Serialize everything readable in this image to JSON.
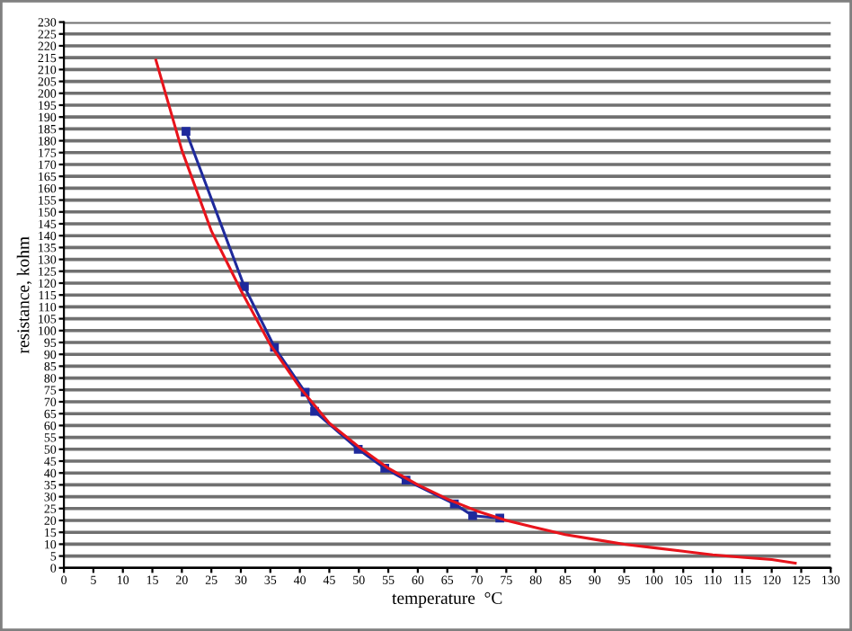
{
  "chart_data": {
    "type": "line",
    "xlabel": "temperature  °C",
    "ylabel": "resistance, kohm",
    "series": [
      {
        "color": "#1f2a9c",
        "marker": "square",
        "x": [
          20.7,
          30.6,
          35.7,
          40.9,
          42.5,
          49.9,
          54.4,
          58,
          66.2,
          69.3,
          73.9
        ],
        "values": [
          184,
          118.5,
          93,
          74,
          66,
          50,
          42,
          37,
          27,
          22,
          21
        ]
      },
      {
        "color": "#e8141c",
        "marker": "none",
        "x": [
          15.6,
          20,
          25,
          30,
          35,
          40,
          45,
          50,
          55,
          60,
          65,
          70,
          75,
          80,
          85,
          90,
          95,
          100,
          105,
          110,
          115,
          120,
          124
        ],
        "values": [
          214,
          176,
          142,
          117,
          94,
          76,
          61,
          51,
          42,
          35,
          29,
          24,
          20,
          17,
          14,
          12,
          10,
          8.5,
          7,
          5.5,
          4.5,
          3.5,
          2
        ]
      }
    ],
    "xlim": [
      0,
      130
    ],
    "xticks": [
      0,
      5,
      10,
      15,
      20,
      25,
      30,
      35,
      40,
      45,
      50,
      55,
      60,
      65,
      70,
      75,
      80,
      85,
      90,
      95,
      100,
      105,
      110,
      115,
      120,
      125,
      130
    ],
    "ylim": [
      0,
      230
    ],
    "yticks": [
      0,
      5,
      10,
      15,
      20,
      25,
      30,
      35,
      40,
      45,
      50,
      55,
      60,
      65,
      70,
      75,
      80,
      85,
      90,
      95,
      100,
      105,
      110,
      115,
      120,
      125,
      130,
      135,
      140,
      145,
      150,
      155,
      160,
      165,
      170,
      175,
      180,
      185,
      190,
      195,
      200,
      205,
      210,
      215,
      220,
      225,
      230
    ],
    "grid": "y",
    "line_style": "solid"
  }
}
